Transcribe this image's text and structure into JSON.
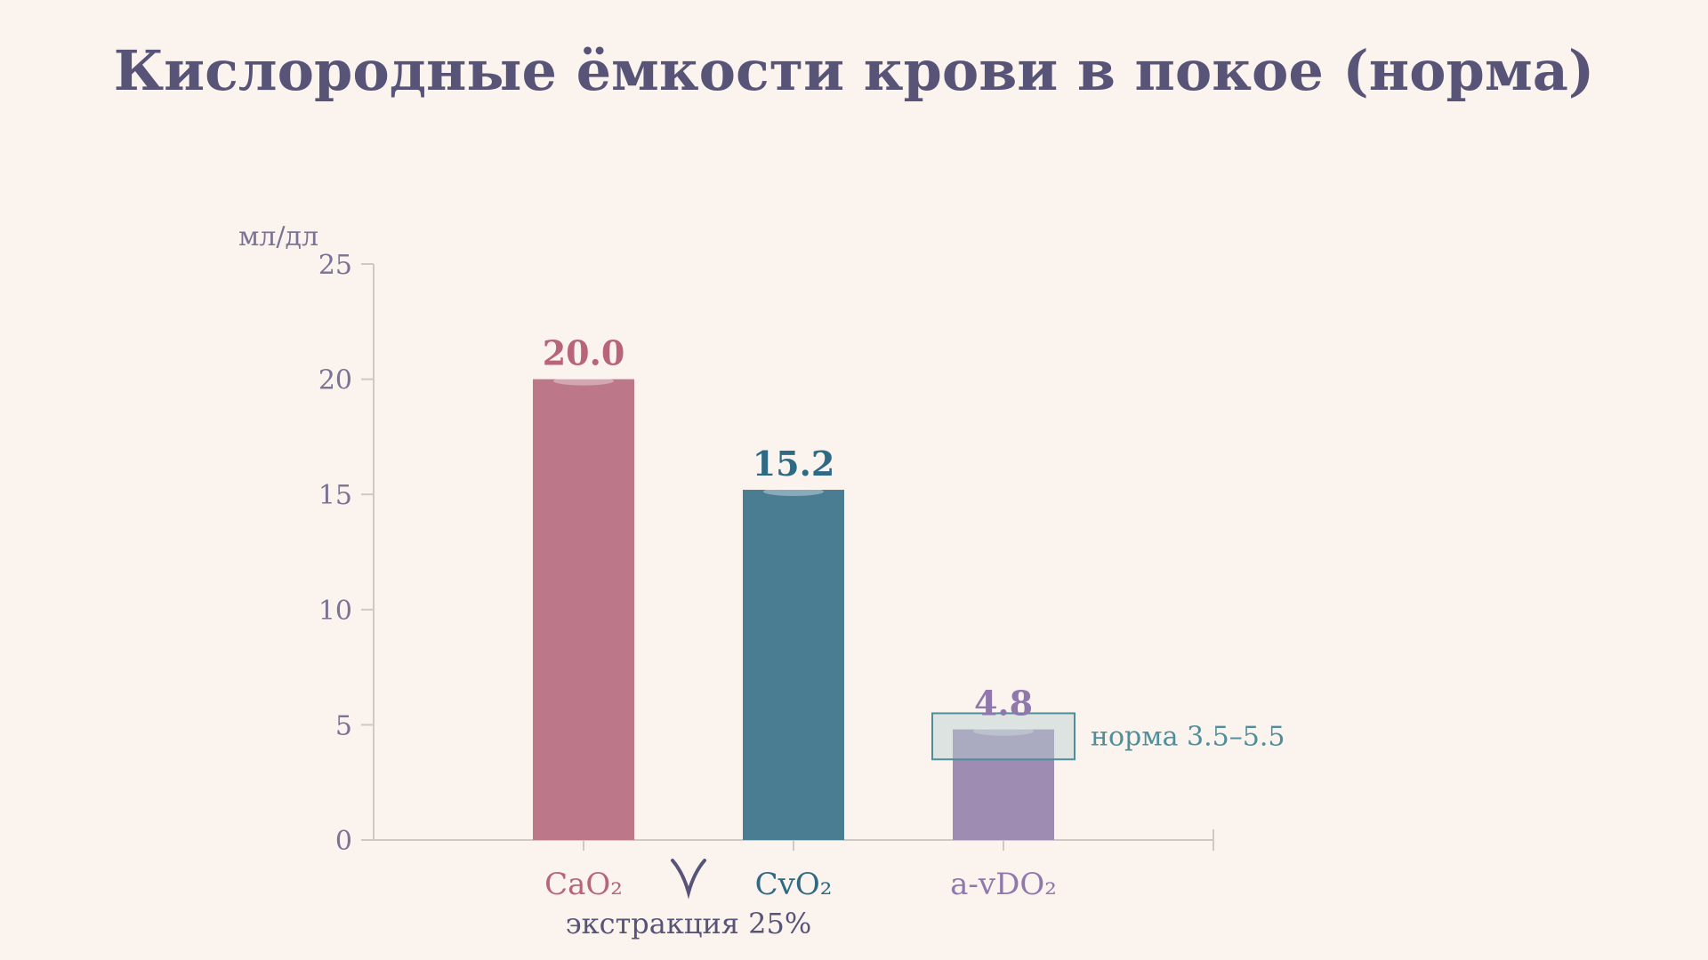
{
  "chart_data": {
    "type": "bar",
    "title": "Кислородные ёмкости крови в покое (норма)",
    "ylabel": "мл/дл",
    "ylim": [
      0,
      25
    ],
    "yticks": [
      0,
      5,
      10,
      15,
      20,
      25
    ],
    "categories": [
      "CaO₂",
      "CvO₂",
      "a-vDO₂"
    ],
    "values": [
      20.0,
      15.2,
      4.8
    ],
    "value_labels": [
      "20.0",
      "15.2",
      "4.8"
    ],
    "colors": [
      "#bc7788",
      "#4a7d92",
      "#9e8cb3"
    ],
    "label_colors": [
      "#b8657b",
      "#2e6a84",
      "#9078ad"
    ],
    "title_color": "#585478",
    "axis_color": "#cfc8c6",
    "annotation": {
      "text": "экстракция 25%",
      "color": "#585478"
    },
    "normal_range": {
      "label": "норма 3.5–5.5",
      "low": 3.5,
      "high": 5.5,
      "color": "#4f8e9a"
    }
  }
}
